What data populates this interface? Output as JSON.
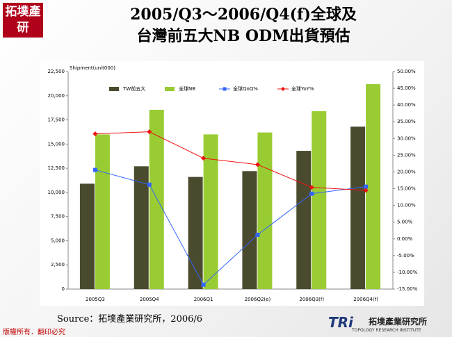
{
  "logo": "拓墣產研",
  "source": "Source：拓墣產業研究所，2006/6",
  "footer": "版權所有．翻印必究",
  "brand": {
    "mark": "TRi",
    "name": "拓墣產業研究所",
    "english": "TOPOLOGY RESEARCH INSTITUTE"
  },
  "chart_data": {
    "type": "combo",
    "title": [
      "2005/Q3～2006/Q4(f)全球及",
      "台灣前五大NB ODM出貨預估"
    ],
    "y_label": "Shipment(unit000)",
    "categories": [
      "2005Q3",
      "2005Q4",
      "2006Q1",
      "2006Q2(e)",
      "2006Q3(f)",
      "2006Q4(f)"
    ],
    "ylim": [
      0,
      22500
    ],
    "yticks": [
      0,
      {
        "value": 2500,
        "label": "2,500"
      },
      {
        "value": 5000,
        "label": "5,000"
      },
      {
        "value": 7500,
        "label": "7,500"
      },
      {
        "value": 10000,
        "label": "10,000"
      },
      {
        "value": 12500,
        "label": "12,500"
      },
      {
        "value": 15000,
        "label": "15,000"
      },
      {
        "value": 17500,
        "label": "17,500"
      },
      {
        "value": 20000,
        "label": "20,000"
      },
      {
        "value": 22500,
        "label": "22,500"
      }
    ],
    "y2lim": [
      -15,
      50
    ],
    "y2ticks": [
      {
        "value": -15,
        "label": "-15.00%"
      },
      {
        "value": -10,
        "label": "-10.00%"
      },
      {
        "value": -5,
        "label": "-5.00%"
      },
      {
        "value": 0,
        "label": "0.00%"
      },
      {
        "value": 5,
        "label": "5.00%"
      },
      {
        "value": 10,
        "label": "10.00%"
      },
      {
        "value": 15,
        "label": "15.00%"
      },
      {
        "value": 20,
        "label": "20.00%"
      },
      {
        "value": 25,
        "label": "25.00%"
      },
      {
        "value": 30,
        "label": "30.00%"
      },
      {
        "value": 35,
        "label": "35.00%"
      },
      {
        "value": 40,
        "label": "40.00%"
      },
      {
        "value": 45,
        "label": "45.00%"
      },
      {
        "value": 50,
        "label": "50.00%"
      }
    ],
    "series": [
      {
        "name": "TW前五大",
        "type": "bar",
        "color": "#4a4a2e",
        "values": [
          10900,
          12700,
          11600,
          12200,
          14300,
          16800
        ]
      },
      {
        "name": "全球NB",
        "type": "bar",
        "color": "#99cc33",
        "values": [
          16000,
          18550,
          16000,
          16200,
          18400,
          21200
        ]
      },
      {
        "name": "全球QoQ%",
        "type": "line",
        "axis": "y2",
        "color": "#3366ff",
        "marker": "square",
        "values": [
          20.6,
          16.2,
          -13.7,
          1.2,
          13.5,
          15.6
        ]
      },
      {
        "name": "全球YoY%",
        "type": "line",
        "axis": "y2",
        "color": "#ee1111",
        "marker": "diamond",
        "values": [
          31.4,
          32.0,
          24.1,
          22.2,
          15.4,
          14.5
        ]
      }
    ]
  }
}
